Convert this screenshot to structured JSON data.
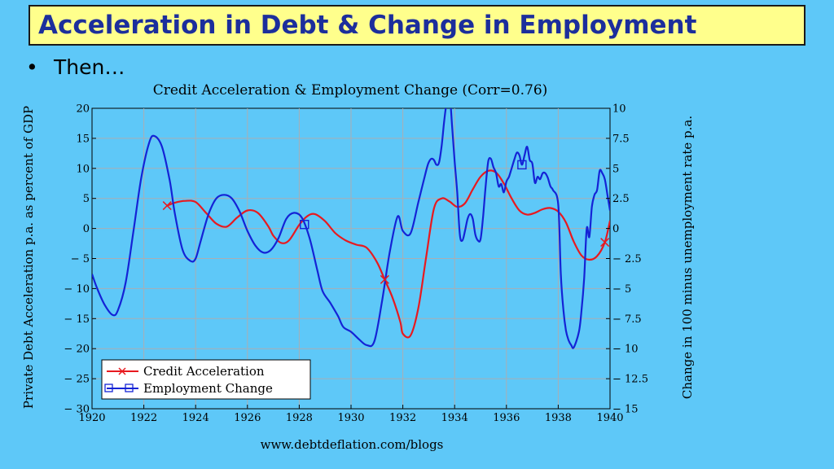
{
  "slide": {
    "title": "Acceleration in Debt & Change in Employment",
    "bullet": "Then…",
    "bullet_marker": "•"
  },
  "colors": {
    "background": "#5ec8f8",
    "title_box": "#ffff8c",
    "title_text": "#1c2e9c",
    "credit": "#e8191f",
    "employment": "#1423d6",
    "grid": "#a9aeb4"
  },
  "chart_data": {
    "type": "line",
    "title": "Credit Acceleration & Employment Change (Corr=0.76)",
    "ylabel": "Private Debt Acceleration p.a. as percent of GDP",
    "y2label": "Change in 100 minus unemployment rate p.a.",
    "source": "www.debtdeflation.com/blogs",
    "xlim": [
      1920,
      1940
    ],
    "ylim": [
      -30,
      20
    ],
    "y2lim": [
      -15,
      10
    ],
    "xticks": [
      "1920",
      "1922",
      "1924",
      "1926",
      "1928",
      "1930",
      "1932",
      "1934",
      "1936",
      "1938",
      "1940"
    ],
    "yticks": [
      "20",
      "15",
      "10",
      "5",
      "0",
      "− 5",
      "− 10",
      "− 15",
      "− 20",
      "− 25",
      "− 30"
    ],
    "y2ticks": [
      "10",
      "7.5",
      "5",
      "2.5",
      "0",
      "− 2.5",
      "− 5",
      "− 7.5",
      "− 10",
      "− 12.5",
      "− 15"
    ],
    "grid": true,
    "legend_position": "bottom-left",
    "series": [
      {
        "name": "Credit Acceleration",
        "axis": "left",
        "marker": "x",
        "color": "#e8191f",
        "x": [
          1922.9,
          1923.2,
          1923.6,
          1924.0,
          1924.4,
          1924.8,
          1925.2,
          1925.6,
          1926.0,
          1926.4,
          1926.8,
          1927.0,
          1927.3,
          1927.6,
          1928.0,
          1928.3,
          1928.6,
          1929.0,
          1929.4,
          1929.8,
          1930.2,
          1930.6,
          1931.0,
          1931.3,
          1931.6,
          1931.9,
          1932.0,
          1932.3,
          1932.6,
          1932.9,
          1933.2,
          1933.5,
          1933.8,
          1934.1,
          1934.4,
          1934.7,
          1935.0,
          1935.3,
          1935.6,
          1935.9,
          1936.2,
          1936.5,
          1936.8,
          1937.1,
          1937.4,
          1937.7,
          1938.0,
          1938.3,
          1938.6,
          1938.9,
          1939.2,
          1939.5,
          1939.8,
          1940.0
        ],
        "y": [
          3.8,
          4.3,
          4.6,
          4.4,
          2.6,
          0.8,
          0.3,
          1.8,
          3.0,
          2.6,
          0.4,
          -1.2,
          -2.4,
          -2.0,
          0.6,
          2.0,
          2.4,
          1.2,
          -0.8,
          -2.0,
          -2.7,
          -3.2,
          -5.6,
          -8.5,
          -11.5,
          -15.5,
          -17.5,
          -17.8,
          -13.2,
          -4.8,
          3.3,
          5.0,
          4.5,
          3.6,
          4.2,
          6.5,
          8.6,
          9.6,
          9.3,
          7.5,
          5.0,
          3.0,
          2.3,
          2.6,
          3.2,
          3.4,
          2.8,
          1.0,
          -2.2,
          -4.5,
          -5.2,
          -4.6,
          -2.3,
          1.3
        ]
      },
      {
        "name": "Employment Change",
        "axis": "right",
        "marker": "square",
        "color": "#1423d6",
        "x": [
          1920.0,
          1920.2,
          1920.5,
          1920.8,
          1921.0,
          1921.3,
          1921.6,
          1921.9,
          1922.2,
          1922.4,
          1922.7,
          1923.0,
          1923.2,
          1923.5,
          1923.8,
          1924.0,
          1924.2,
          1924.5,
          1924.8,
          1925.1,
          1925.4,
          1925.7,
          1926.0,
          1926.3,
          1926.6,
          1926.9,
          1927.2,
          1927.5,
          1927.8,
          1928.1,
          1928.4,
          1928.7,
          1928.9,
          1929.2,
          1929.5,
          1929.7,
          1930.0,
          1930.3,
          1930.6,
          1930.9,
          1931.2,
          1931.5,
          1931.8,
          1932.0,
          1932.3,
          1932.6,
          1932.9,
          1933.0,
          1933.1,
          1933.2,
          1933.3,
          1933.4,
          1933.5,
          1933.6,
          1933.7,
          1933.8,
          1933.9,
          1934.0,
          1934.1,
          1934.2,
          1934.3,
          1934.4,
          1934.5,
          1934.6,
          1934.7,
          1934.8,
          1934.9,
          1935.0,
          1935.1,
          1935.2,
          1935.3,
          1935.4,
          1935.5,
          1935.6,
          1935.7,
          1935.8,
          1935.9,
          1936.0,
          1936.1,
          1936.2,
          1936.3,
          1936.4,
          1936.5,
          1936.6,
          1936.7,
          1936.8,
          1936.9,
          1937.0,
          1937.1,
          1937.2,
          1937.3,
          1937.4,
          1937.5,
          1937.6,
          1937.7,
          1937.8,
          1938.0,
          1938.1,
          1938.2,
          1938.3,
          1938.4,
          1938.5,
          1938.6,
          1938.8,
          1938.9,
          1939.0,
          1939.1,
          1939.2,
          1939.3,
          1939.4,
          1939.5,
          1939.6,
          1939.7,
          1939.8,
          1939.9,
          1940.0
        ],
        "y": [
          -3.8,
          -5.0,
          -6.4,
          -7.2,
          -6.8,
          -4.5,
          -0.2,
          4.2,
          7.1,
          7.7,
          6.8,
          4.0,
          1.2,
          -1.8,
          -2.7,
          -2.5,
          -1.0,
          1.2,
          2.5,
          2.8,
          2.5,
          1.4,
          -0.2,
          -1.4,
          -2.0,
          -1.8,
          -0.8,
          0.8,
          1.3,
          0.9,
          -0.8,
          -3.5,
          -5.2,
          -6.2,
          -7.3,
          -8.2,
          -8.6,
          -9.2,
          -9.7,
          -9.4,
          -6.0,
          -1.9,
          1.0,
          -0.2,
          -0.4,
          2.2,
          4.8,
          5.5,
          5.8,
          5.7,
          5.3,
          5.5,
          6.9,
          9.0,
          10.6,
          11.3,
          8.6,
          5.6,
          3.0,
          -0.5,
          -1.0,
          -0.2,
          0.8,
          1.2,
          0.8,
          -0.5,
          -1.0,
          -0.9,
          1.0,
          3.6,
          5.6,
          5.8,
          5.1,
          4.6,
          3.5,
          3.7,
          3.0,
          3.9,
          4.3,
          5.0,
          5.7,
          6.3,
          6.1,
          5.3,
          6.1,
          6.8,
          5.7,
          5.4,
          3.8,
          4.3,
          4.1,
          4.6,
          4.6,
          4.2,
          3.5,
          3.2,
          2.0,
          -3.8,
          -6.8,
          -8.5,
          -9.3,
          -9.7,
          -9.9,
          -8.6,
          -6.8,
          -4.2,
          0.0,
          -0.7,
          1.8,
          2.8,
          3.2,
          4.8,
          4.6,
          4.1,
          2.8,
          1.5
        ]
      }
    ],
    "markers_note_free": true,
    "credit_markers_x": [
      1922.9,
      1931.3,
      1939.8
    ],
    "employment_markers_x": [
      1928.2,
      1936.6
    ]
  }
}
